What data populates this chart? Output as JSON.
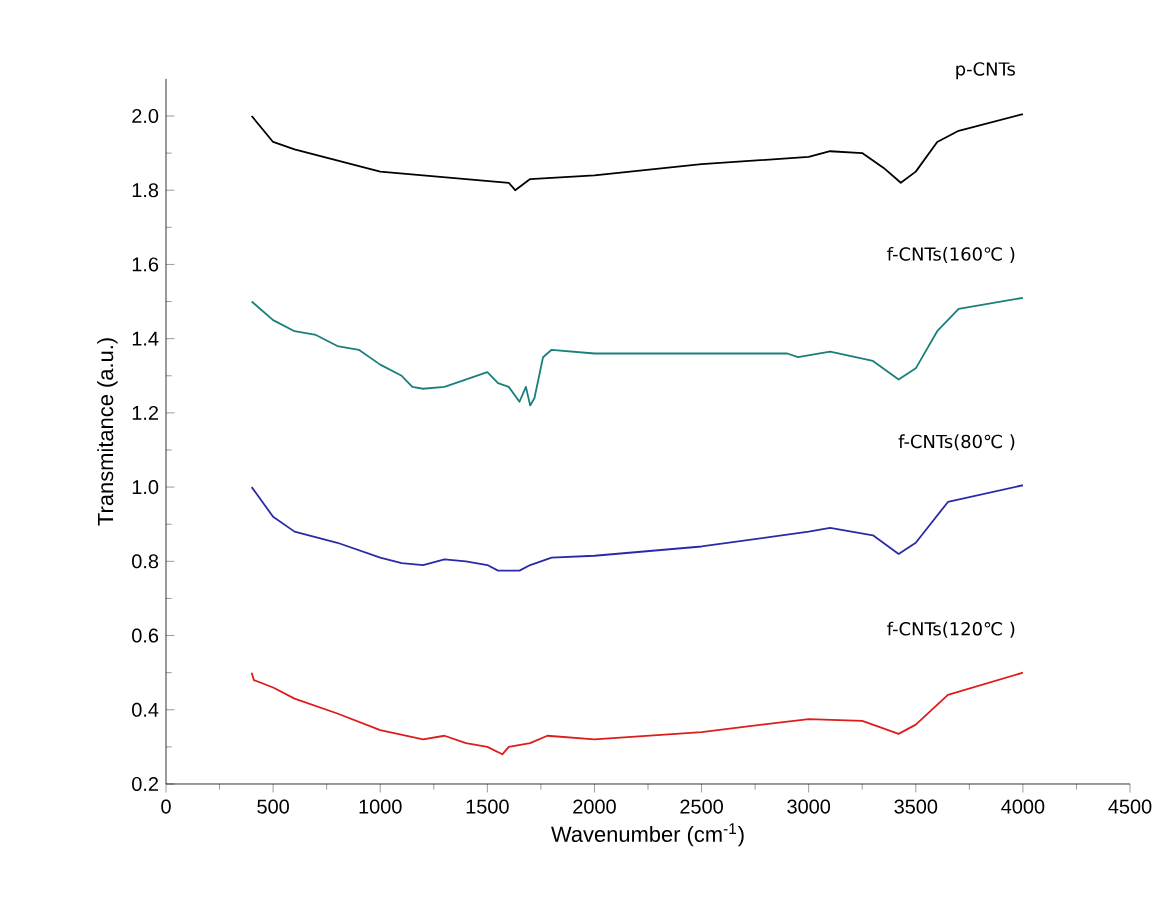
{
  "chart_data": {
    "type": "line",
    "xlabel": "Wavenumber (cm$^{-1}$)",
    "ylabel": "Transmitance (a.u.)",
    "xlim": [
      0,
      4500
    ],
    "ylim": [
      0.2,
      2.1
    ],
    "xticks": [
      0,
      500,
      1000,
      1500,
      2000,
      2500,
      3000,
      3500,
      4000,
      4500
    ],
    "yticks": [
      0.2,
      {
        "value": 0.4,
        "label": "0.4"
      },
      {
        "value": 0.6,
        "label": "0.6"
      },
      {
        "value": 0.8,
        "label": "0.8"
      },
      {
        "value": 1.0,
        "label": "1.0"
      },
      {
        "value": 1.2,
        "label": "1.2"
      },
      {
        "value": 1.4,
        "label": "1.4"
      },
      {
        "value": 1.6,
        "label": "1.6"
      },
      {
        "value": 1.8,
        "label": "1.8"
      },
      {
        "value": 2.0,
        "label": "2.0"
      }
    ],
    "grid": false,
    "marker": "none",
    "line_style": "solid",
    "series": [
      {
        "name": "p-CNTs",
        "color": "#000000",
        "x": [
          400,
          500,
          600,
          800,
          1000,
          1200,
          1400,
          1600,
          1630,
          1700,
          2000,
          2500,
          3000,
          3100,
          3250,
          3350,
          3430,
          3500,
          3600,
          3700,
          4000
        ],
        "values": [
          2.0,
          1.93,
          1.91,
          1.88,
          1.85,
          1.84,
          1.83,
          1.82,
          1.8,
          1.83,
          1.84,
          1.87,
          1.89,
          1.905,
          1.9,
          1.86,
          1.82,
          1.85,
          1.93,
          1.96,
          2.005
        ]
      },
      {
        "name": "f-CNTs(160℃ )",
        "color": "#1a7f7a",
        "x": [
          400,
          500,
          600,
          700,
          800,
          900,
          1000,
          1100,
          1150,
          1200,
          1300,
          1400,
          1500,
          1550,
          1600,
          1650,
          1680,
          1700,
          1720,
          1760,
          1800,
          2000,
          2500,
          2900,
          2950,
          3100,
          3300,
          3420,
          3500,
          3600,
          3700,
          4000
        ],
        "values": [
          1.5,
          1.45,
          1.42,
          1.41,
          1.38,
          1.37,
          1.33,
          1.3,
          1.27,
          1.265,
          1.27,
          1.29,
          1.31,
          1.28,
          1.27,
          1.23,
          1.27,
          1.22,
          1.24,
          1.35,
          1.37,
          1.36,
          1.36,
          1.36,
          1.35,
          1.365,
          1.34,
          1.29,
          1.32,
          1.42,
          1.48,
          1.51
        ]
      },
      {
        "name": "f-CNTs(80℃ )",
        "color": "#2a2aa8",
        "x": [
          400,
          500,
          600,
          800,
          1000,
          1100,
          1200,
          1300,
          1400,
          1500,
          1550,
          1650,
          1700,
          1800,
          2000,
          2500,
          3000,
          3100,
          3300,
          3420,
          3500,
          3650,
          4000
        ],
        "values": [
          1.0,
          0.92,
          0.88,
          0.85,
          0.81,
          0.795,
          0.79,
          0.805,
          0.8,
          0.79,
          0.775,
          0.775,
          0.79,
          0.81,
          0.815,
          0.84,
          0.88,
          0.89,
          0.87,
          0.82,
          0.85,
          0.96,
          1.005
        ]
      },
      {
        "name": "f-CNTs(120℃ )",
        "color": "#dd1c1c",
        "x": [
          400,
          410,
          500,
          600,
          700,
          800,
          1000,
          1200,
          1300,
          1400,
          1500,
          1570,
          1600,
          1700,
          1780,
          2000,
          2500,
          3000,
          3250,
          3420,
          3500,
          3650,
          4000
        ],
        "values": [
          0.5,
          0.48,
          0.46,
          0.43,
          0.41,
          0.39,
          0.345,
          0.32,
          0.33,
          0.31,
          0.3,
          0.28,
          0.3,
          0.31,
          0.33,
          0.32,
          0.34,
          0.375,
          0.37,
          0.335,
          0.36,
          0.44,
          0.5
        ]
      }
    ]
  }
}
